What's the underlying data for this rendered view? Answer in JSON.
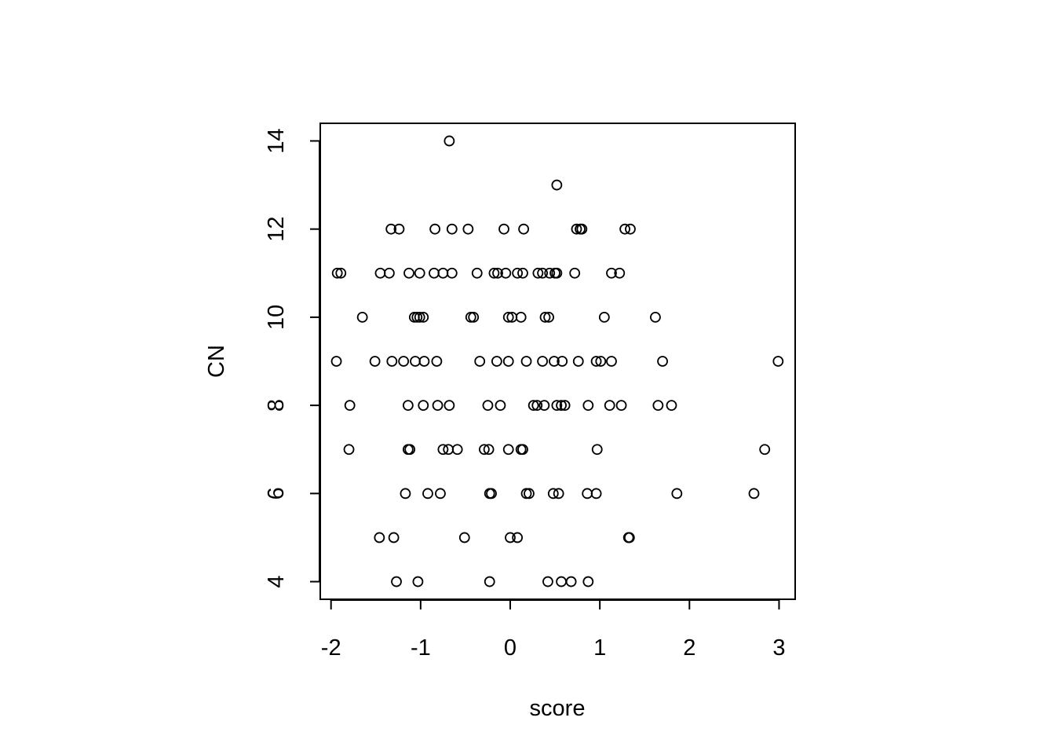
{
  "chart_data": {
    "type": "scatter",
    "title": "",
    "xlabel": "score",
    "ylabel": "CN",
    "xlim": [
      -2.12,
      3.18
    ],
    "ylim": [
      3.6,
      14.4
    ],
    "xticks": [
      -2,
      -1,
      0,
      1,
      2,
      3
    ],
    "yticks": [
      4,
      6,
      8,
      10,
      12,
      14
    ],
    "xtick_labels": [
      "-2",
      "-1",
      "0",
      "1",
      "2",
      "3"
    ],
    "ytick_labels": [
      "4",
      "6",
      "8",
      "10",
      "12",
      "14"
    ],
    "grid": false,
    "legend": "none",
    "marker": "open-circle",
    "colors": {
      "marker": "#000000",
      "axis": "#000000",
      "background": "#ffffff"
    },
    "points": [
      [
        -0.68,
        14
      ],
      [
        0.52,
        13
      ],
      [
        -1.33,
        12
      ],
      [
        -1.24,
        12
      ],
      [
        -0.84,
        12
      ],
      [
        -0.65,
        12
      ],
      [
        -0.47,
        12
      ],
      [
        -0.07,
        12
      ],
      [
        0.15,
        12
      ],
      [
        0.74,
        12
      ],
      [
        0.78,
        12
      ],
      [
        0.8,
        12
      ],
      [
        1.28,
        12
      ],
      [
        1.34,
        12
      ],
      [
        -1.93,
        11
      ],
      [
        -1.89,
        11
      ],
      [
        -1.45,
        11
      ],
      [
        -1.35,
        11
      ],
      [
        -1.13,
        11
      ],
      [
        -1.01,
        11
      ],
      [
        -0.85,
        11
      ],
      [
        -0.75,
        11
      ],
      [
        -0.65,
        11
      ],
      [
        -0.37,
        11
      ],
      [
        -0.18,
        11
      ],
      [
        -0.14,
        11
      ],
      [
        -0.05,
        11
      ],
      [
        0.08,
        11
      ],
      [
        0.14,
        11
      ],
      [
        0.31,
        11
      ],
      [
        0.36,
        11
      ],
      [
        0.44,
        11
      ],
      [
        0.5,
        11
      ],
      [
        0.52,
        11
      ],
      [
        0.72,
        11
      ],
      [
        1.13,
        11
      ],
      [
        1.22,
        11
      ],
      [
        -1.65,
        10
      ],
      [
        -1.07,
        10
      ],
      [
        -1.04,
        10
      ],
      [
        -1.01,
        10
      ],
      [
        -0.97,
        10
      ],
      [
        -0.44,
        10
      ],
      [
        -0.41,
        10
      ],
      [
        -0.02,
        10
      ],
      [
        0.02,
        10
      ],
      [
        0.12,
        10
      ],
      [
        0.39,
        10
      ],
      [
        0.43,
        10
      ],
      [
        1.05,
        10
      ],
      [
        1.62,
        10
      ],
      [
        -1.94,
        9
      ],
      [
        -1.51,
        9
      ],
      [
        -1.32,
        9
      ],
      [
        -1.19,
        9
      ],
      [
        -1.06,
        9
      ],
      [
        -0.96,
        9
      ],
      [
        -0.82,
        9
      ],
      [
        -0.34,
        9
      ],
      [
        -0.15,
        9
      ],
      [
        -0.02,
        9
      ],
      [
        0.18,
        9
      ],
      [
        0.36,
        9
      ],
      [
        0.49,
        9
      ],
      [
        0.58,
        9
      ],
      [
        0.76,
        9
      ],
      [
        0.96,
        9
      ],
      [
        1.01,
        9
      ],
      [
        1.13,
        9
      ],
      [
        1.7,
        9
      ],
      [
        2.99,
        9
      ],
      [
        -1.79,
        8
      ],
      [
        -1.14,
        8
      ],
      [
        -0.97,
        8
      ],
      [
        -0.81,
        8
      ],
      [
        -0.68,
        8
      ],
      [
        -0.25,
        8
      ],
      [
        -0.11,
        8
      ],
      [
        0.26,
        8
      ],
      [
        0.3,
        8
      ],
      [
        0.38,
        8
      ],
      [
        0.52,
        8
      ],
      [
        0.57,
        8
      ],
      [
        0.61,
        8
      ],
      [
        0.87,
        8
      ],
      [
        1.11,
        8
      ],
      [
        1.24,
        8
      ],
      [
        1.65,
        8
      ],
      [
        1.8,
        8
      ],
      [
        -1.8,
        7
      ],
      [
        -1.14,
        7
      ],
      [
        -1.12,
        7
      ],
      [
        -0.75,
        7
      ],
      [
        -0.69,
        7
      ],
      [
        -0.59,
        7
      ],
      [
        -0.29,
        7
      ],
      [
        -0.24,
        7
      ],
      [
        -0.02,
        7
      ],
      [
        0.12,
        7
      ],
      [
        0.14,
        7
      ],
      [
        0.97,
        7
      ],
      [
        2.84,
        7
      ],
      [
        -1.17,
        6
      ],
      [
        -0.92,
        6
      ],
      [
        -0.78,
        6
      ],
      [
        -0.23,
        6
      ],
      [
        -0.21,
        6
      ],
      [
        0.18,
        6
      ],
      [
        0.21,
        6
      ],
      [
        0.48,
        6
      ],
      [
        0.54,
        6
      ],
      [
        0.86,
        6
      ],
      [
        0.96,
        6
      ],
      [
        1.86,
        6
      ],
      [
        2.72,
        6
      ],
      [
        -1.46,
        5
      ],
      [
        -1.3,
        5
      ],
      [
        -0.51,
        5
      ],
      [
        0.0,
        5
      ],
      [
        0.08,
        5
      ],
      [
        1.32,
        5
      ],
      [
        1.33,
        5
      ],
      [
        -1.27,
        4
      ],
      [
        -1.03,
        4
      ],
      [
        -0.23,
        4
      ],
      [
        0.42,
        4
      ],
      [
        0.57,
        4
      ],
      [
        0.68,
        4
      ],
      [
        0.87,
        4
      ]
    ]
  }
}
